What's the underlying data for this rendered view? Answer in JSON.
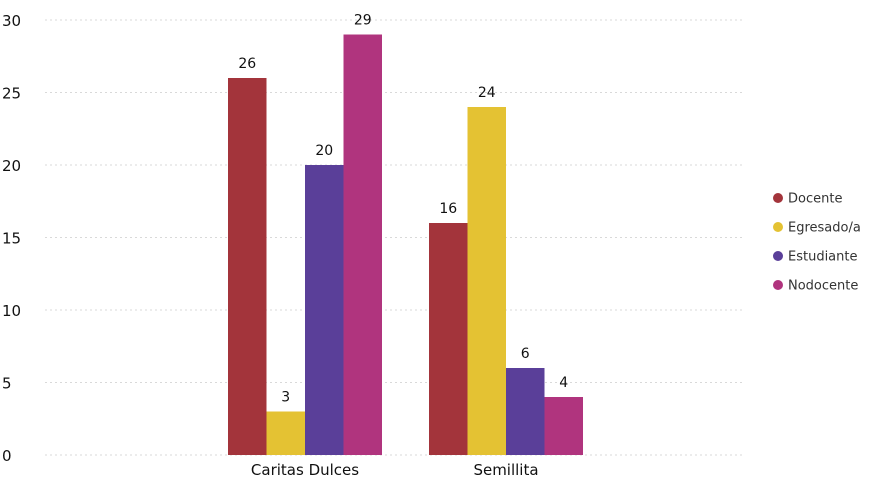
{
  "chart_data": {
    "type": "bar",
    "title": "",
    "xlabel": "",
    "ylabel": "",
    "categories": [
      "Caritas Dulces",
      "Semillita"
    ],
    "series": [
      {
        "name": "Docente",
        "color": "#a3343b",
        "values": [
          26,
          16
        ]
      },
      {
        "name": "Egresado/a",
        "color": "#e4c233",
        "values": [
          3,
          24
        ]
      },
      {
        "name": "Estudiante",
        "color": "#5a3f99",
        "values": [
          20,
          6
        ]
      },
      {
        "name": "Nodocente",
        "color": "#b0347e",
        "values": [
          29,
          4
        ]
      }
    ],
    "ylim": [
      0,
      30
    ],
    "yticks": [
      0,
      5,
      10,
      15,
      20,
      25,
      30
    ],
    "grid": true,
    "legend_position": "right",
    "data_labels": true
  }
}
